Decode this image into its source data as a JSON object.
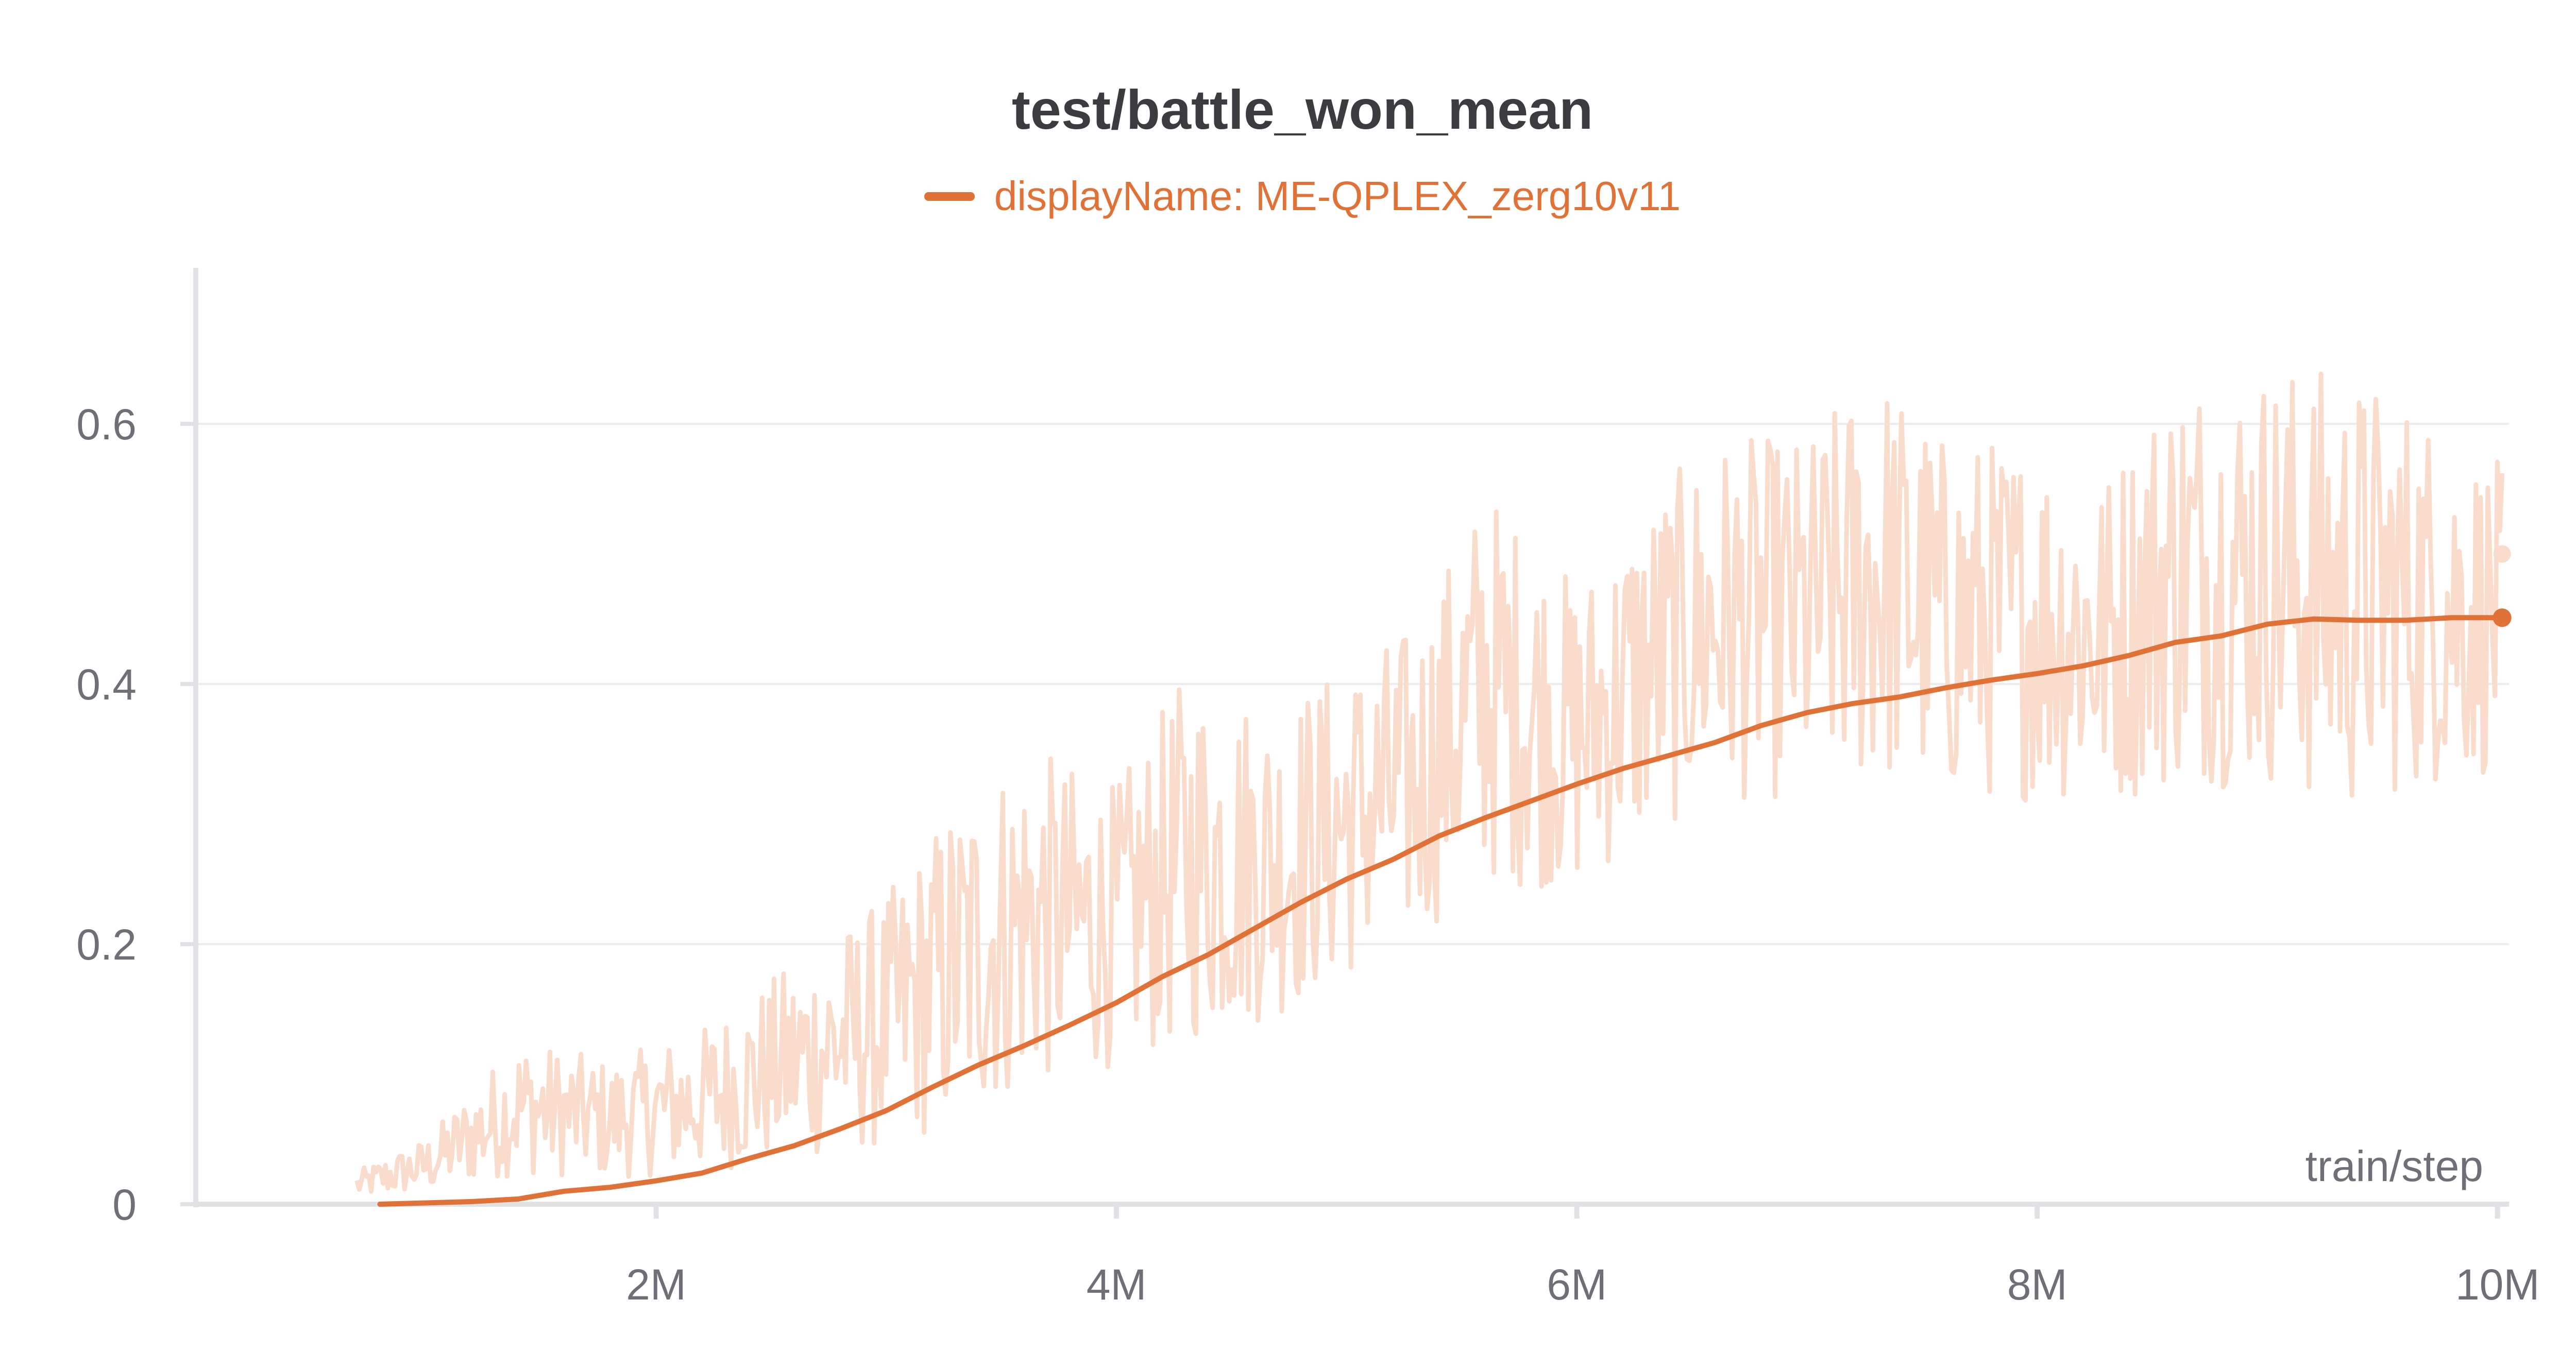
{
  "colors": {
    "series": "#e07237",
    "raw": "#f9dccb",
    "grid": "#ececee",
    "axis": "#e2e2e6",
    "text": "#6f6f78",
    "title": "#3b3b40"
  },
  "chart_data": {
    "type": "line",
    "title": "test/battle_won_mean",
    "xlabel": "train/step",
    "ylabel": "",
    "xlim": [
      0,
      10050000
    ],
    "ylim": [
      0,
      0.72
    ],
    "grid": true,
    "legend_position": "top-center",
    "x_ticks": [
      {
        "value": 2000000,
        "label": "2M"
      },
      {
        "value": 4000000,
        "label": "4M"
      },
      {
        "value": 6000000,
        "label": "6M"
      },
      {
        "value": 8000000,
        "label": "8M"
      },
      {
        "value": 10000000,
        "label": "10M"
      }
    ],
    "y_ticks": [
      {
        "value": 0,
        "label": "0"
      },
      {
        "value": 0.2,
        "label": "0.2"
      },
      {
        "value": 0.4,
        "label": "0.4"
      },
      {
        "value": 0.6,
        "label": "0.6"
      }
    ],
    "series": [
      {
        "name": "displayName: ME-QPLEX_zerg10v11",
        "smoothed": {
          "x": [
            800000,
            1000000,
            1200000,
            1400000,
            1600000,
            1800000,
            2000000,
            2200000,
            2400000,
            2600000,
            2800000,
            3000000,
            3200000,
            3400000,
            3600000,
            3800000,
            4000000,
            4200000,
            4400000,
            4600000,
            4800000,
            5000000,
            5200000,
            5400000,
            5600000,
            5800000,
            6000000,
            6200000,
            6400000,
            6600000,
            6800000,
            7000000,
            7200000,
            7400000,
            7600000,
            7800000,
            8000000,
            8200000,
            8400000,
            8600000,
            8800000,
            9000000,
            9200000,
            9400000,
            9600000,
            9800000,
            10020000
          ],
          "y": [
            0.0,
            0.001,
            0.002,
            0.004,
            0.01,
            0.013,
            0.018,
            0.024,
            0.035,
            0.045,
            0.058,
            0.072,
            0.09,
            0.107,
            0.122,
            0.138,
            0.155,
            0.175,
            0.192,
            0.212,
            0.232,
            0.25,
            0.265,
            0.283,
            0.297,
            0.31,
            0.323,
            0.335,
            0.345,
            0.355,
            0.368,
            0.378,
            0.385,
            0.39,
            0.397,
            0.403,
            0.408,
            0.414,
            0.422,
            0.432,
            0.437,
            0.446,
            0.45,
            0.449,
            0.449,
            0.451,
            0.451
          ]
        },
        "raw": {
          "x": [
            700000,
            1000000,
            1400000,
            1800000,
            2200000,
            2600000,
            3000000,
            3300000,
            3600000,
            4000000,
            4300000,
            4700000,
            5000000,
            5300000,
            5600000,
            6000000,
            6300000,
            6600000,
            7000000,
            7300000,
            7600000,
            8000000,
            8300000,
            8600000,
            9000000,
            9300000,
            9600000,
            10020000
          ],
          "y_min": [
            0.0,
            0.0,
            0.0,
            0.0,
            0.0,
            0.0,
            0.0,
            0.0,
            0.03,
            0.06,
            0.06,
            0.09,
            0.12,
            0.15,
            0.18,
            0.19,
            0.22,
            0.25,
            0.25,
            0.25,
            0.25,
            0.25,
            0.25,
            0.25,
            0.25,
            0.22,
            0.25,
            0.28
          ],
          "y_max": [
            0.03,
            0.06,
            0.15,
            0.13,
            0.16,
            0.22,
            0.28,
            0.37,
            0.41,
            0.37,
            0.47,
            0.44,
            0.47,
            0.5,
            0.62,
            0.53,
            0.6,
            0.65,
            0.65,
            0.72,
            0.65,
            0.65,
            0.62,
            0.72,
            0.72,
            0.72,
            0.69,
            0.62
          ],
          "last_value": 0.5
        }
      }
    ]
  }
}
